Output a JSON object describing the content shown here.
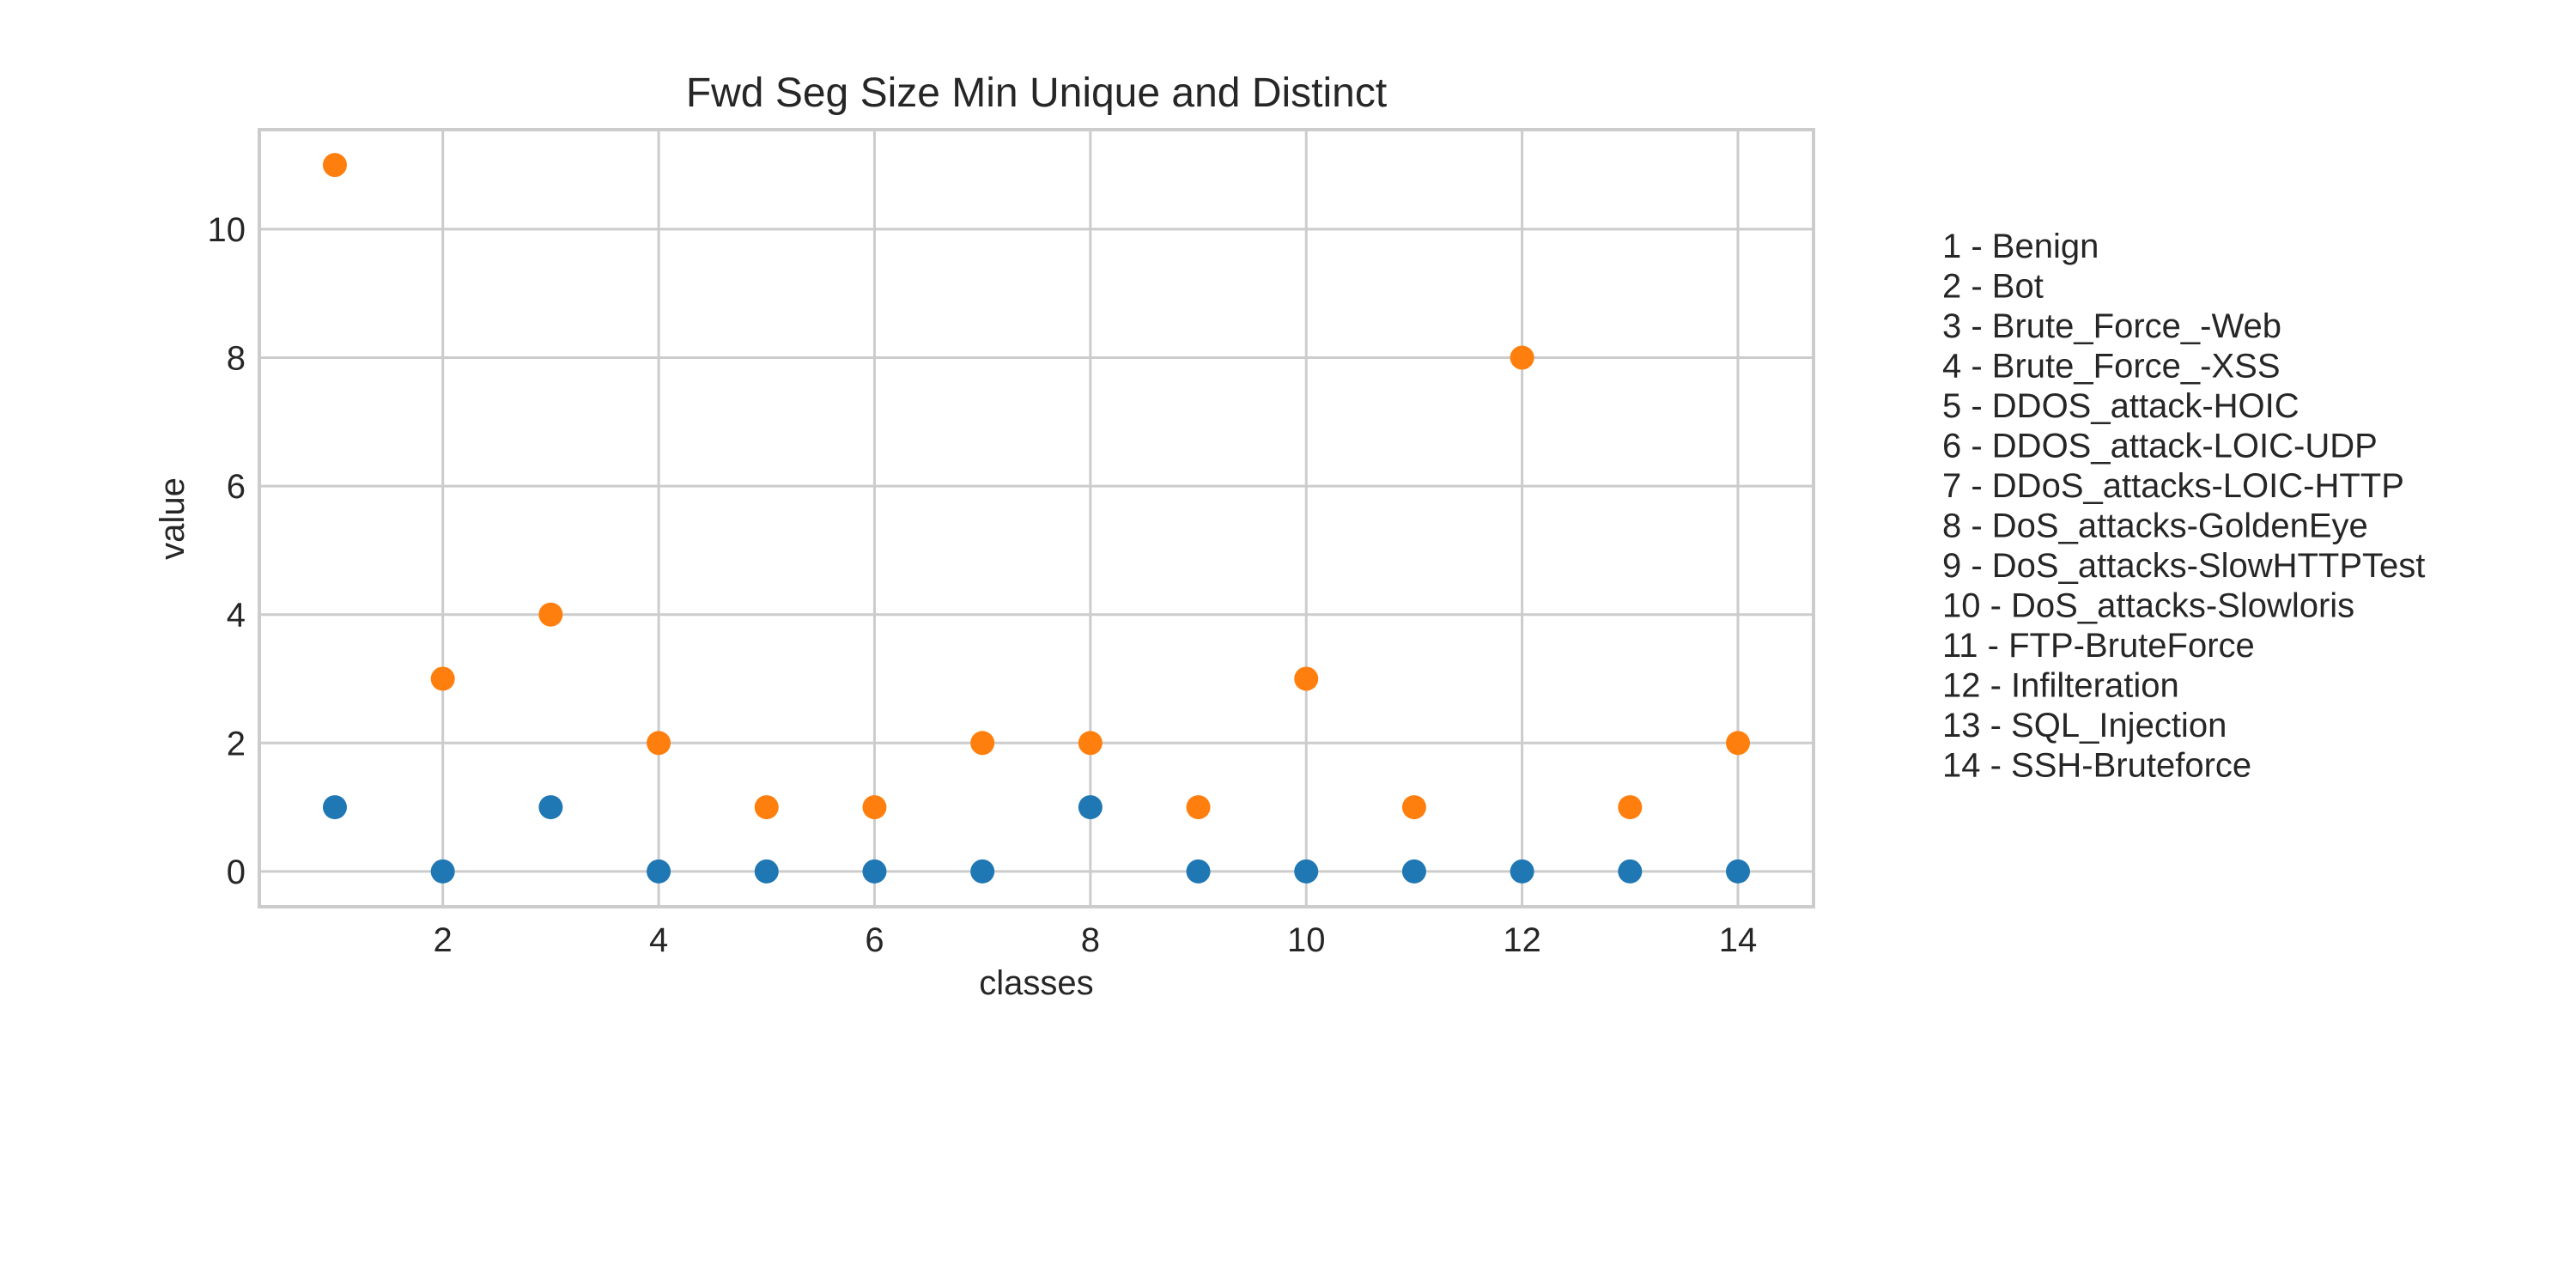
{
  "chart_data": {
    "type": "scatter",
    "title": "Fwd Seg Size Min Unique and Distinct",
    "xlabel": "classes",
    "ylabel": "value",
    "xlim": [
      0.3,
      14.7
    ],
    "ylim": [
      -0.55,
      11.55
    ],
    "xticks": [
      2,
      4,
      6,
      8,
      10,
      12,
      14
    ],
    "yticks": [
      0,
      2,
      4,
      6,
      8,
      10
    ],
    "grid": true,
    "x": [
      1,
      2,
      3,
      4,
      5,
      6,
      7,
      8,
      9,
      10,
      11,
      12,
      13,
      14
    ],
    "series": [
      {
        "color": "#1f77b4",
        "values": [
          1,
          0,
          1,
          0,
          0,
          0,
          0,
          1,
          0,
          0,
          0,
          0,
          0,
          0
        ]
      },
      {
        "color": "#ff7f0e",
        "values": [
          11,
          3,
          4,
          2,
          1,
          1,
          2,
          2,
          1,
          3,
          1,
          8,
          1,
          2
        ]
      }
    ],
    "legend_placement": "right",
    "class_legend": [
      "1 - Benign",
      "2 - Bot",
      "3 - Brute_Force_-Web",
      "4 - Brute_Force_-XSS",
      "5 - DDOS_attack-HOIC",
      "6 - DDOS_attack-LOIC-UDP",
      "7 - DDoS_attacks-LOIC-HTTP",
      "8 - DoS_attacks-GoldenEye",
      "9 - DoS_attacks-SlowHTTPTest",
      "10 - DoS_attacks-Slowloris",
      "11 - FTP-BruteForce",
      "12 - Infilteration",
      "13 - SQL_Injection",
      "14 - SSH-Bruteforce"
    ]
  }
}
